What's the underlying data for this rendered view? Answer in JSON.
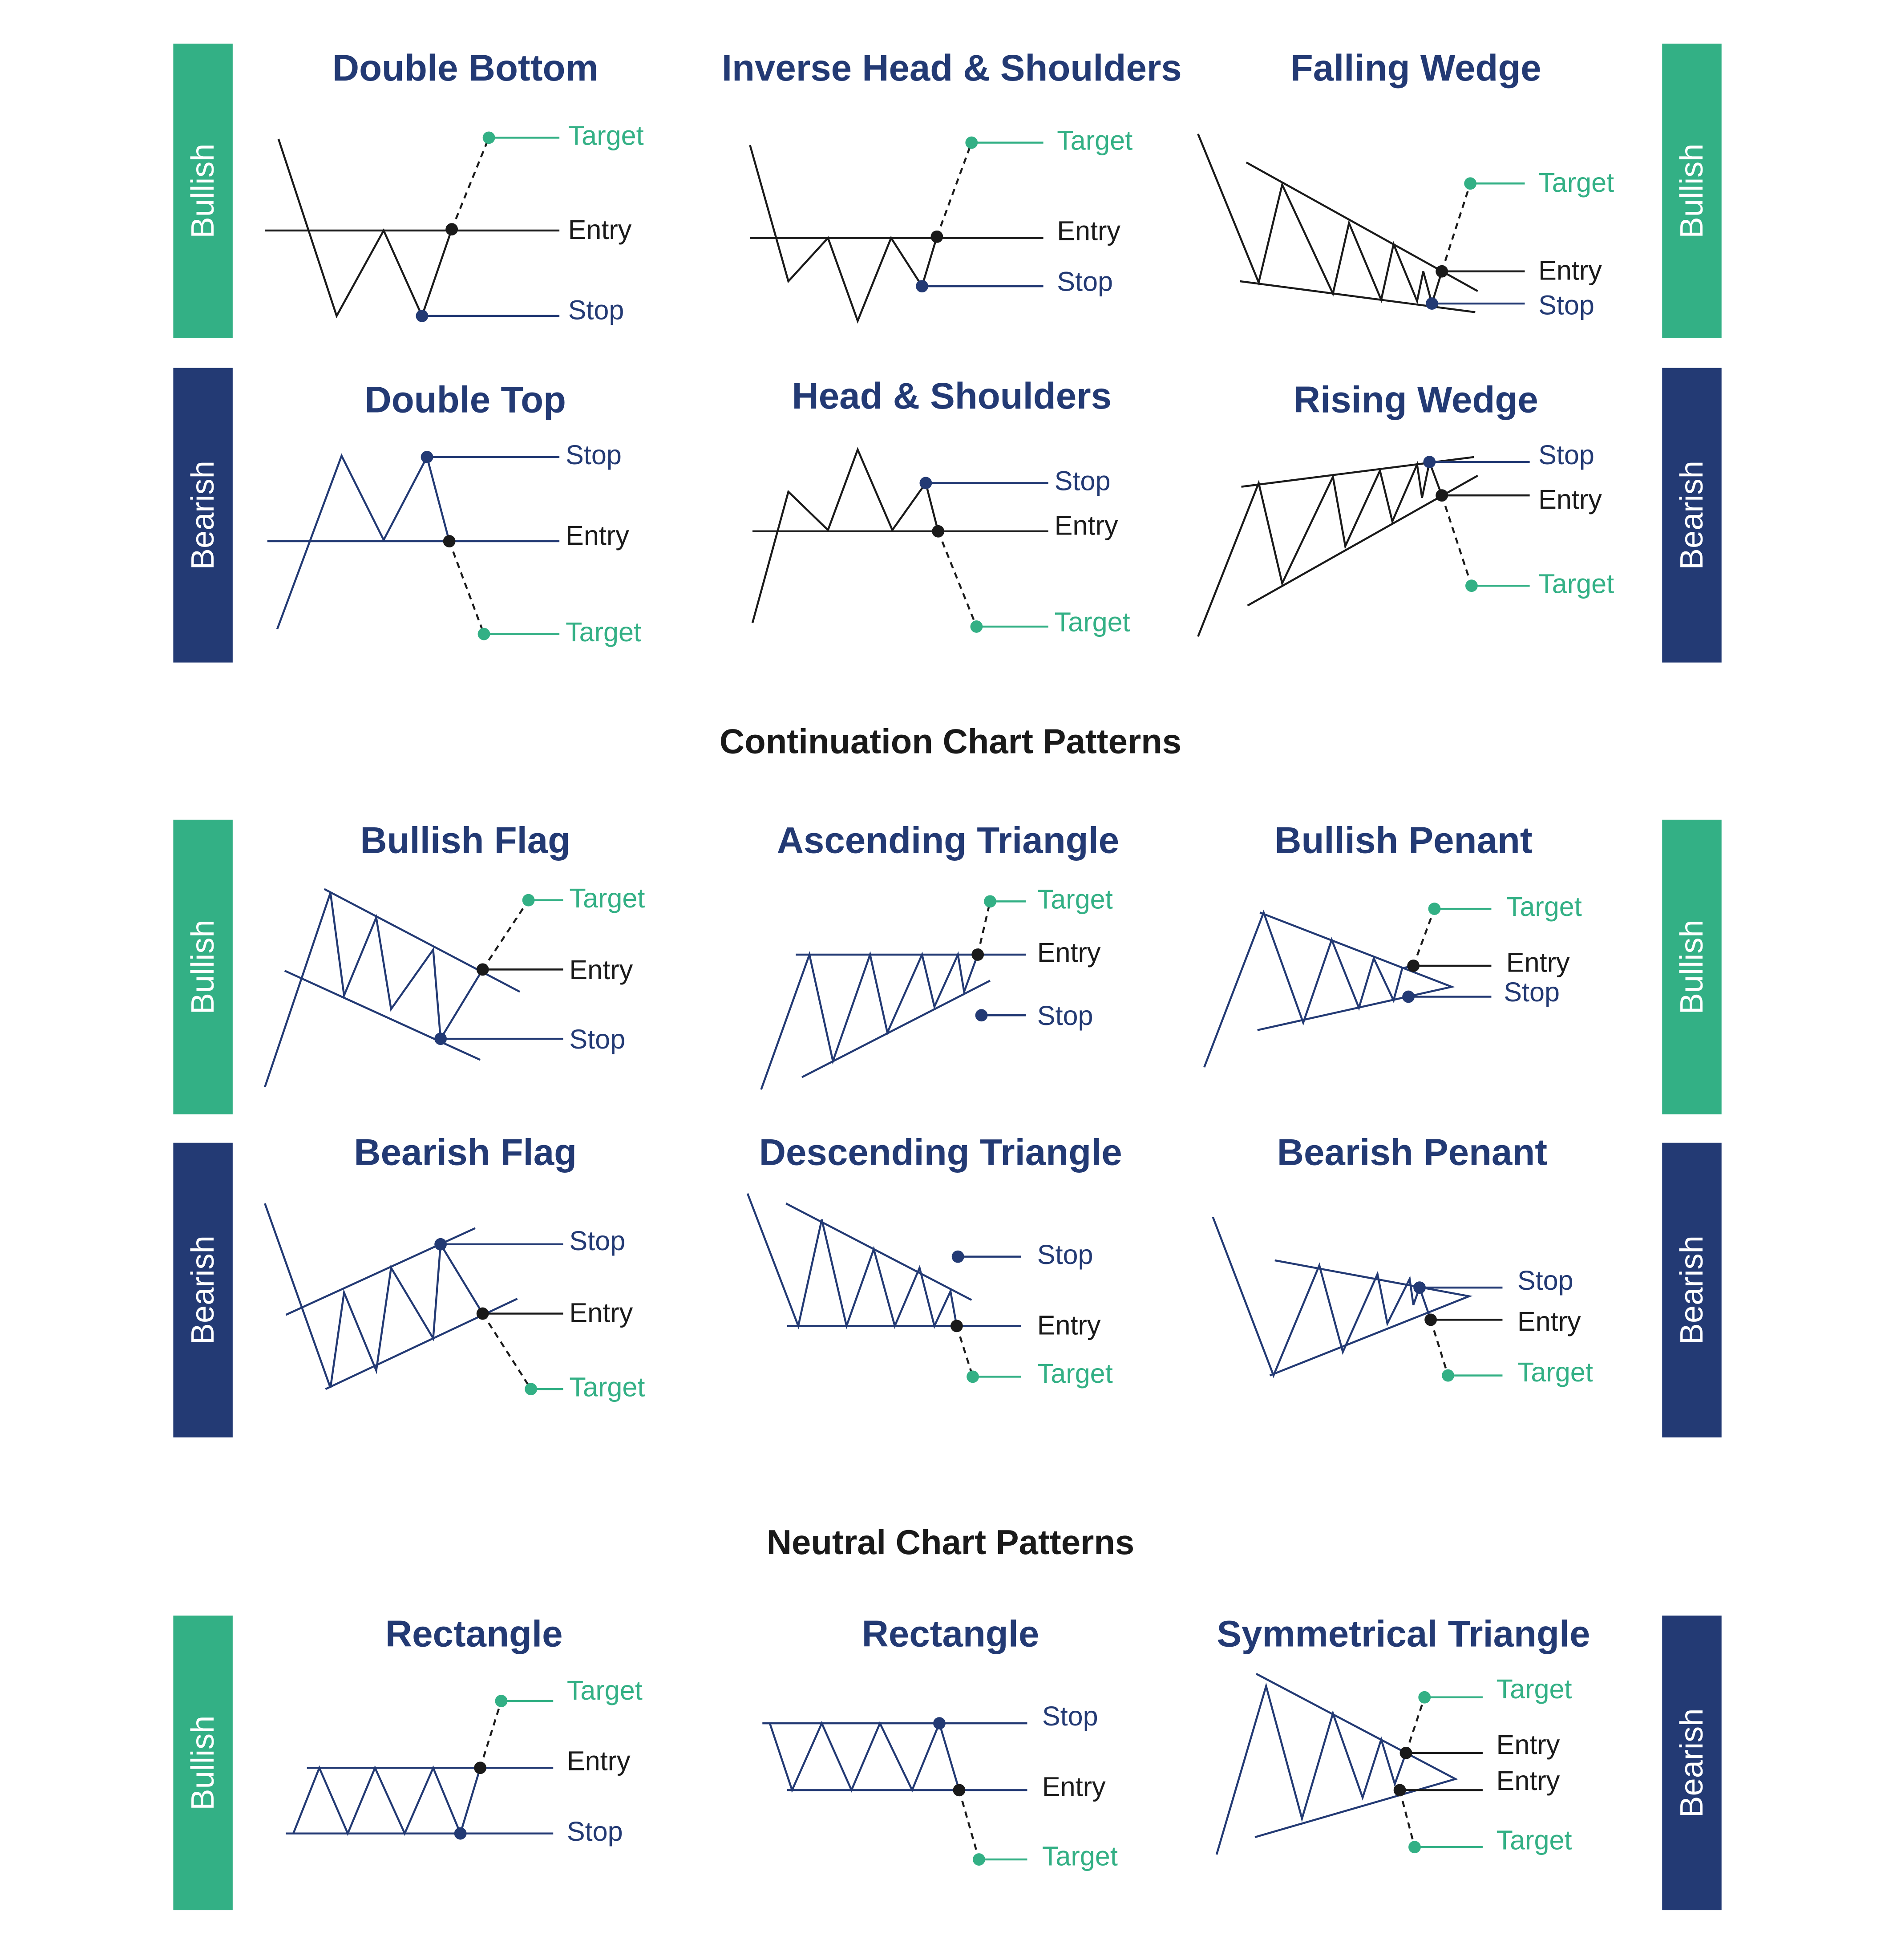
{
  "colors": {
    "green": "#33b085",
    "navy": "#233a74",
    "black": "#1a1a1a"
  },
  "labels": {
    "target": "Target",
    "entry": "Entry",
    "stop": "Stop"
  },
  "sections": {
    "continuation": "Continuation Chart Patterns",
    "neutral": "Neutral Chart Patterns"
  },
  "bands": [
    {
      "id": "band-reversal-bullish",
      "left": "Bullish",
      "right": "Bullish",
      "leftTone": "green",
      "rightTone": "green"
    },
    {
      "id": "band-reversal-bearish",
      "left": "Bearish",
      "right": "Bearish",
      "leftTone": "navy",
      "rightTone": "navy"
    },
    {
      "id": "band-continuation-bullish",
      "left": "Bullish",
      "right": "Bullish",
      "leftTone": "green",
      "rightTone": "green"
    },
    {
      "id": "band-continuation-bearish",
      "left": "Bearish",
      "right": "Bearish",
      "leftTone": "navy",
      "rightTone": "navy"
    },
    {
      "id": "band-neutral",
      "left": "Bullish",
      "right": "Bearish",
      "leftTone": "green",
      "rightTone": "navy"
    }
  ],
  "patterns": [
    {
      "id": "double-bottom",
      "title": "Double Bottom"
    },
    {
      "id": "inverse-head-shoulders",
      "title": "Inverse Head & Shoulders"
    },
    {
      "id": "falling-wedge",
      "title": "Falling Wedge"
    },
    {
      "id": "double-top",
      "title": "Double Top"
    },
    {
      "id": "head-shoulders",
      "title": "Head & Shoulders"
    },
    {
      "id": "rising-wedge",
      "title": "Rising Wedge"
    },
    {
      "id": "bullish-flag",
      "title": "Bullish Flag"
    },
    {
      "id": "ascending-triangle",
      "title": "Ascending Triangle"
    },
    {
      "id": "bullish-penant",
      "title": "Bullish Penant"
    },
    {
      "id": "bearish-flag",
      "title": "Bearish Flag"
    },
    {
      "id": "descending-triangle",
      "title": "Descending Triangle"
    },
    {
      "id": "bearish-penant",
      "title": "Bearish Penant"
    },
    {
      "id": "rectangle-bullish",
      "title": "Rectangle"
    },
    {
      "id": "rectangle-bearish",
      "title": "Rectangle"
    },
    {
      "id": "symmetrical-triangle",
      "title": "Symmetrical Triangle"
    }
  ]
}
